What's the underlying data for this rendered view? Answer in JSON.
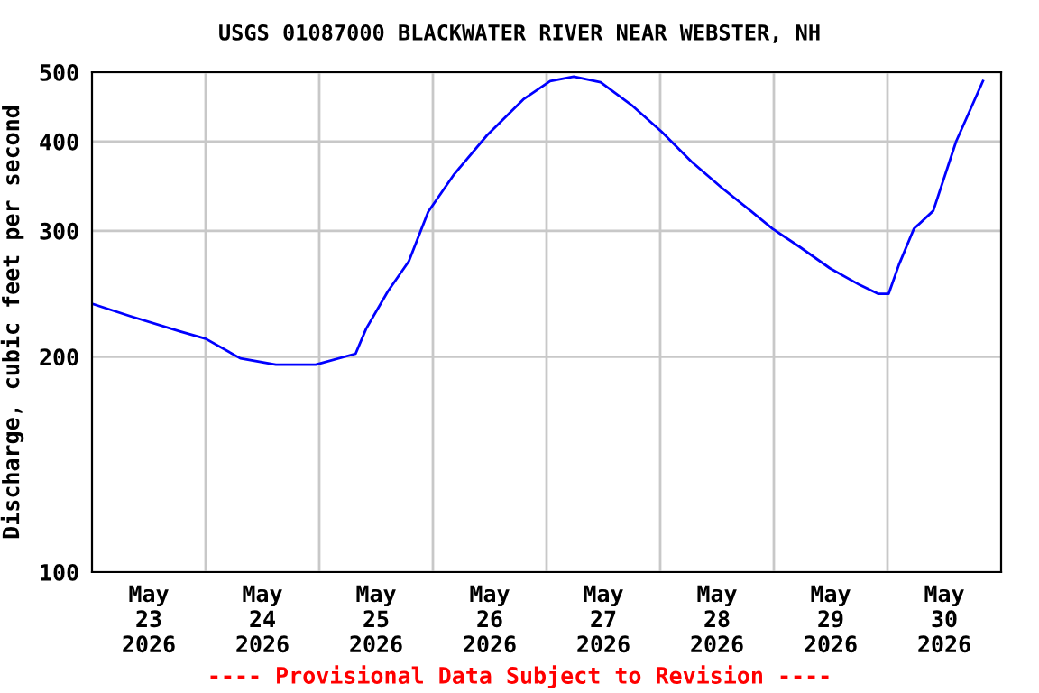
{
  "chart_data": {
    "type": "line",
    "title": "USGS 01087000 BLACKWATER RIVER NEAR WEBSTER, NH",
    "ylabel": "Discharge, cubic feet per second",
    "annotations": [
      "---- Provisional Data Subject to Revision ----"
    ],
    "series": [
      {
        "color": "#0000ff",
        "x": [
          "2026-05-23T00:15",
          "2026-05-23T08:00",
          "2026-05-23T18:40",
          "2026-05-24T00:00",
          "2026-05-24T07:20",
          "2026-05-24T14:50",
          "2026-05-24T23:15",
          "2026-05-25T07:40",
          "2026-05-25T09:55",
          "2026-05-25T14:30",
          "2026-05-25T18:55",
          "2026-05-25T23:00",
          "2026-05-26T04:30",
          "2026-05-26T11:25",
          "2026-05-26T19:05",
          "2026-05-27T00:45",
          "2026-05-27T05:45",
          "2026-05-27T11:25",
          "2026-05-27T17:55",
          "2026-05-28T00:15",
          "2026-05-28T06:35",
          "2026-05-28T12:55",
          "2026-05-28T19:20",
          "2026-05-28T23:45",
          "2026-05-29T05:25",
          "2026-05-29T11:50",
          "2026-05-29T18:10",
          "2026-05-29T22:00",
          "2026-05-30T00:15",
          "2026-05-30T02:25",
          "2026-05-30T05:35",
          "2026-05-30T09:40",
          "2026-05-30T14:30",
          "2026-05-30T20:10"
        ],
        "values": [
          237,
          228,
          217,
          212,
          199,
          195,
          195,
          202,
          219,
          247,
          272,
          319,
          360,
          408,
          458,
          486,
          493,
          484,
          450,
          413,
          375,
          345,
          319,
          302,
          285,
          266,
          252,
          245,
          245,
          269,
          302,
          320,
          400,
          486
        ]
      }
    ],
    "xlim": [
      "2026-05-23T00:00",
      "2026-05-31T00:00"
    ],
    "xticks": [
      {
        "value": "2026-05-24T00:00",
        "label": null
      },
      {
        "value": "2026-05-25T00:00",
        "label": null
      },
      {
        "value": "2026-05-26T00:00",
        "label": null
      },
      {
        "value": "2026-05-27T00:00",
        "label": null
      },
      {
        "value": "2026-05-28T00:00",
        "label": null
      },
      {
        "value": "2026-05-29T00:00",
        "label": null
      },
      {
        "value": "2026-05-30T00:00",
        "label": null
      },
      {
        "value": "2026-05-23T12:00",
        "label": "May\n23\n2026"
      },
      {
        "value": "2026-05-24T12:00",
        "label": "May\n24\n2026"
      },
      {
        "value": "2026-05-25T12:00",
        "label": "May\n25\n2026"
      },
      {
        "value": "2026-05-26T12:00",
        "label": "May\n26\n2026"
      },
      {
        "value": "2026-05-27T12:00",
        "label": "May\n27\n2026"
      },
      {
        "value": "2026-05-28T12:00",
        "label": "May\n28\n2026"
      },
      {
        "value": "2026-05-29T12:00",
        "label": "May\n29\n2026"
      },
      {
        "value": "2026-05-30T12:00",
        "label": "May\n30\n2026"
      }
    ],
    "log": "y",
    "ylim": [
      100,
      500
    ],
    "yticks": [
      100,
      200,
      300,
      400,
      500
    ],
    "grid": true
  }
}
